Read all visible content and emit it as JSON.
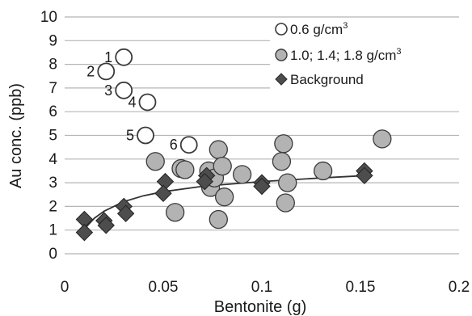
{
  "chart_data": {
    "type": "scatter",
    "title": "",
    "xlabel": "Bentonite (g)",
    "ylabel": "Au conc. (ppb)",
    "xlim": [
      0,
      0.2
    ],
    "ylim": [
      0,
      10
    ],
    "x_ticks": [
      "0",
      "0.05",
      "0.1",
      "0.15",
      "0.2"
    ],
    "y_ticks": [
      "0",
      "1",
      "2",
      "3",
      "4",
      "5",
      "6",
      "7",
      "8",
      "9",
      "10"
    ],
    "grid": "horizontal",
    "legend_position": "top-right",
    "legend": {
      "open": "0.6 g/cm",
      "open_sup": "3",
      "gray": "1.0; 1.4; 1.8 g/cm",
      "gray_sup": "3",
      "background": "Background"
    },
    "colors": {
      "open_fill": "#ffffff",
      "gray_fill": "#b3b3b3",
      "diamond_fill": "#4d4d4d",
      "edge": "#3a3a3a",
      "trend": "#333333"
    },
    "series": [
      {
        "name": "0.6 g/cm3",
        "marker": "open-circle",
        "points": [
          {
            "x": 0.03,
            "y": 8.3,
            "label": "1"
          },
          {
            "x": 0.021,
            "y": 7.7,
            "label": "2"
          },
          {
            "x": 0.03,
            "y": 6.9,
            "label": "3"
          },
          {
            "x": 0.042,
            "y": 6.4,
            "label": "4"
          },
          {
            "x": 0.041,
            "y": 5.0,
            "label": "5"
          },
          {
            "x": 0.063,
            "y": 4.6,
            "label": "6"
          }
        ]
      },
      {
        "name": "1.0; 1.4; 1.8 g/cm3",
        "marker": "gray-circle",
        "points": [
          {
            "x": 0.046,
            "y": 3.9
          },
          {
            "x": 0.059,
            "y": 3.6
          },
          {
            "x": 0.061,
            "y": 3.55
          },
          {
            "x": 0.056,
            "y": 1.75
          },
          {
            "x": 0.073,
            "y": 3.5
          },
          {
            "x": 0.074,
            "y": 2.8
          },
          {
            "x": 0.076,
            "y": 3.2
          },
          {
            "x": 0.078,
            "y": 4.4
          },
          {
            "x": 0.08,
            "y": 3.7
          },
          {
            "x": 0.081,
            "y": 2.4
          },
          {
            "x": 0.078,
            "y": 1.45
          },
          {
            "x": 0.09,
            "y": 3.35
          },
          {
            "x": 0.11,
            "y": 3.9
          },
          {
            "x": 0.111,
            "y": 4.65
          },
          {
            "x": 0.112,
            "y": 2.15
          },
          {
            "x": 0.113,
            "y": 3.0
          },
          {
            "x": 0.131,
            "y": 3.5
          },
          {
            "x": 0.161,
            "y": 4.85
          }
        ]
      },
      {
        "name": "Background",
        "marker": "diamond",
        "points": [
          {
            "x": 0.01,
            "y": 1.45
          },
          {
            "x": 0.01,
            "y": 0.9
          },
          {
            "x": 0.02,
            "y": 1.4
          },
          {
            "x": 0.021,
            "y": 1.2
          },
          {
            "x": 0.03,
            "y": 2.0
          },
          {
            "x": 0.031,
            "y": 1.7
          },
          {
            "x": 0.051,
            "y": 3.05
          },
          {
            "x": 0.05,
            "y": 2.55
          },
          {
            "x": 0.072,
            "y": 3.3
          },
          {
            "x": 0.071,
            "y": 3.05
          },
          {
            "x": 0.1,
            "y": 3.0
          },
          {
            "x": 0.1,
            "y": 2.85
          },
          {
            "x": 0.152,
            "y": 3.5
          },
          {
            "x": 0.152,
            "y": 3.3
          }
        ]
      }
    ],
    "trendline": {
      "series": "Background",
      "type": "log",
      "points": [
        {
          "x": 0.01,
          "y": 1.05
        },
        {
          "x": 0.015,
          "y": 1.5
        },
        {
          "x": 0.02,
          "y": 1.8
        },
        {
          "x": 0.03,
          "y": 2.2
        },
        {
          "x": 0.04,
          "y": 2.45
        },
        {
          "x": 0.05,
          "y": 2.62
        },
        {
          "x": 0.07,
          "y": 2.85
        },
        {
          "x": 0.1,
          "y": 3.05
        },
        {
          "x": 0.13,
          "y": 3.2
        },
        {
          "x": 0.152,
          "y": 3.3
        }
      ]
    }
  }
}
